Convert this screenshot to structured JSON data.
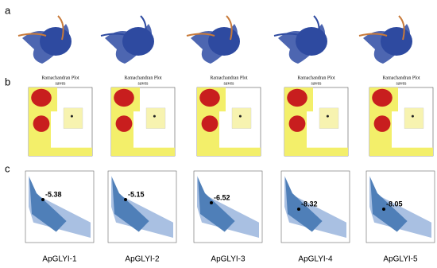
{
  "panel_labels": [
    "a",
    "b",
    "c"
  ],
  "ramachandran": [
    {
      "title": "Ramachandran Plot",
      "subtitle": "saves"
    },
    {
      "title": "Ramachandran Plot",
      "subtitle": "saves"
    },
    {
      "title": "Ramachandran Plot",
      "subtitle": "saves"
    },
    {
      "title": "Ramachandran Plot",
      "subtitle": "saves"
    },
    {
      "title": "Ramachandran Plot",
      "subtitle": "saves"
    }
  ],
  "zscore_plots": [
    {
      "z_score": -5.38,
      "name": "ApGLYI-1"
    },
    {
      "z_score": -5.15,
      "name": "ApGLYI-2"
    },
    {
      "z_score": -6.52,
      "name": "ApGLYI-3"
    },
    {
      "z_score": -8.32,
      "name": "ApGLYI-4"
    },
    {
      "z_score": -8.05,
      "name": "ApGLYI-5"
    }
  ]
}
